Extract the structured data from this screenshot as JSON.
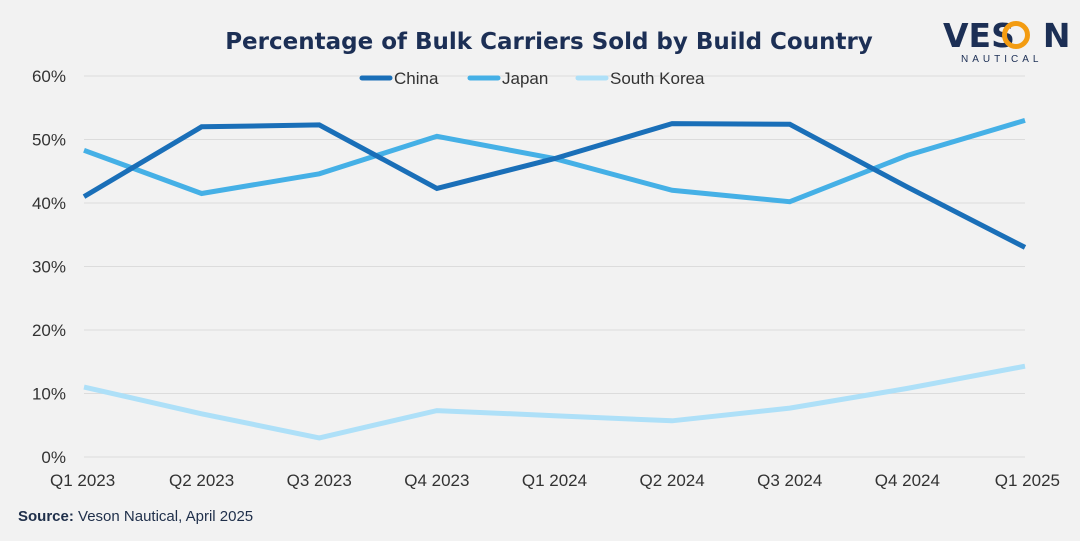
{
  "brand": {
    "name_part1": "VES",
    "name_part2": "N",
    "subtitle": "NAUTICAL",
    "accent_color": "#f39c12"
  },
  "source": {
    "label": "Source:",
    "text": "Veson Nautical, April 2025"
  },
  "chart_data": {
    "type": "line",
    "title": "Percentage of Bulk Carriers Sold by Build Country",
    "xlabel": "",
    "ylabel": "",
    "categories": [
      "Q1 2023",
      "Q2 2023",
      "Q3 2023",
      "Q4 2023",
      "Q1 2024",
      "Q2 2024",
      "Q3 2024",
      "Q4 2024",
      "Q1 2025"
    ],
    "ylim": [
      0,
      60
    ],
    "yticks": [
      0,
      10,
      20,
      30,
      40,
      50,
      60
    ],
    "ytick_labels": [
      "0%",
      "10%",
      "20%",
      "30%",
      "40%",
      "50%",
      "60%"
    ],
    "grid": true,
    "legend_position": "top-center",
    "series": [
      {
        "name": "China",
        "color": "#1a6fb8",
        "values": [
          41,
          52,
          52.3,
          42.3,
          47,
          52.5,
          52.4,
          42.5,
          33
        ]
      },
      {
        "name": "Japan",
        "color": "#45b0e6",
        "values": [
          48.3,
          41.5,
          44.6,
          50.5,
          47,
          42,
          40.2,
          47.5,
          53
        ]
      },
      {
        "name": "South Korea",
        "color": "#aee0f8",
        "values": [
          11,
          6.8,
          3,
          7.3,
          6.5,
          5.7,
          7.7,
          10.8,
          14.3
        ]
      }
    ]
  }
}
